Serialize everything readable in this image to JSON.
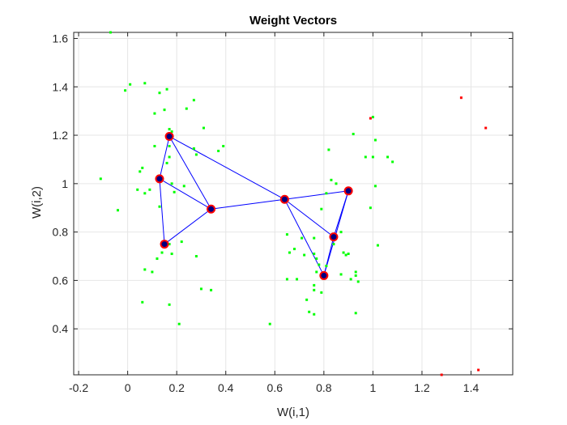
{
  "chart_data": {
    "type": "scatter",
    "title": "Weight Vectors",
    "xlabel": "W(i,1)",
    "ylabel": "W(i,2)",
    "xlim": [
      -0.22,
      1.57
    ],
    "ylim": [
      0.21,
      1.625
    ],
    "grid": true,
    "x_ticks": [
      -0.2,
      0,
      0.2,
      0.4,
      0.6,
      0.8,
      1,
      1.2,
      1.4
    ],
    "x_tick_labels": [
      "-0.2",
      "0",
      "0.2",
      "0.4",
      "0.6",
      "0.8",
      "1",
      "1.2",
      "1.4"
    ],
    "y_ticks": [
      0.4,
      0.6,
      0.8,
      1,
      1.2,
      1.4,
      1.6
    ],
    "y_tick_labels": [
      "0.4",
      "0.6",
      "0.8",
      "1",
      "1.2",
      "1.4",
      "1.6"
    ],
    "colors": {
      "green_points": "#00ff00",
      "red_points": "#ff0000",
      "network_lines": "#0000ff",
      "neuron_edge": "#ff0000",
      "neuron_face": "#000080",
      "grid": "#e6e6e6",
      "axis": "#262626"
    },
    "series": [
      {
        "marker": "dot",
        "points": [
          [
            -0.07,
            1.625
          ],
          [
            0.07,
            1.415
          ],
          [
            0.01,
            1.41
          ],
          [
            -0.01,
            1.385
          ],
          [
            0.16,
            1.39
          ],
          [
            0.13,
            1.375
          ],
          [
            0.27,
            1.345
          ],
          [
            0.24,
            1.31
          ],
          [
            0.11,
            1.29
          ],
          [
            0.15,
            1.305
          ],
          [
            0.31,
            1.23
          ],
          [
            0.17,
            1.225
          ],
          [
            0.18,
            1.215
          ],
          [
            0.16,
            1.19
          ],
          [
            0.11,
            1.155
          ],
          [
            0.27,
            1.145
          ],
          [
            0.39,
            1.155
          ],
          [
            0.37,
            1.135
          ],
          [
            0.17,
            1.155
          ],
          [
            0.17,
            1.11
          ],
          [
            0.16,
            1.085
          ],
          [
            0.06,
            1.065
          ],
          [
            0.05,
            1.05
          ],
          [
            0.28,
            1.12
          ],
          [
            0.18,
            1.0
          ],
          [
            0.23,
            0.99
          ],
          [
            0.04,
            0.975
          ],
          [
            0.09,
            0.975
          ],
          [
            0.07,
            0.96
          ],
          [
            0.13,
            0.905
          ],
          [
            -0.11,
            1.02
          ],
          [
            -0.04,
            0.89
          ],
          [
            0.19,
            0.965
          ],
          [
            0.17,
            0.75
          ],
          [
            0.22,
            0.76
          ],
          [
            0.14,
            0.715
          ],
          [
            0.18,
            0.71
          ],
          [
            0.12,
            0.69
          ],
          [
            0.28,
            0.7
          ],
          [
            0.07,
            0.645
          ],
          [
            0.1,
            0.635
          ],
          [
            0.3,
            0.565
          ],
          [
            0.34,
            0.56
          ],
          [
            0.06,
            0.51
          ],
          [
            0.17,
            0.5
          ],
          [
            0.21,
            0.42
          ],
          [
            0.58,
            0.42
          ],
          [
            0.65,
            0.79
          ],
          [
            0.71,
            0.775
          ],
          [
            0.68,
            0.73
          ],
          [
            0.66,
            0.715
          ],
          [
            0.76,
            0.775
          ],
          [
            0.76,
            0.71
          ],
          [
            0.72,
            0.705
          ],
          [
            0.77,
            0.69
          ],
          [
            0.78,
            0.665
          ],
          [
            0.77,
            0.635
          ],
          [
            0.8,
            0.61
          ],
          [
            0.81,
            0.66
          ],
          [
            0.76,
            0.58
          ],
          [
            0.76,
            0.56
          ],
          [
            0.79,
            0.55
          ],
          [
            0.73,
            0.52
          ],
          [
            0.74,
            0.47
          ],
          [
            0.76,
            0.46
          ],
          [
            0.65,
            0.605
          ],
          [
            0.69,
            0.605
          ],
          [
            0.88,
            0.715
          ],
          [
            0.89,
            0.705
          ],
          [
            0.9,
            0.71
          ],
          [
            0.87,
            0.625
          ],
          [
            0.93,
            0.635
          ],
          [
            0.93,
            0.62
          ],
          [
            0.91,
            0.605
          ],
          [
            0.94,
            0.595
          ],
          [
            0.93,
            0.465
          ],
          [
            0.79,
            0.895
          ],
          [
            0.81,
            0.96
          ],
          [
            0.83,
            1.015
          ],
          [
            0.85,
            1.0
          ],
          [
            0.82,
            1.14
          ],
          [
            0.84,
            0.75
          ],
          [
            0.87,
            0.8
          ],
          [
            0.92,
            1.205
          ],
          [
            1.0,
            1.275
          ],
          [
            1.01,
            1.18
          ],
          [
            0.97,
            1.11
          ],
          [
            1.06,
            1.11
          ],
          [
            1.08,
            1.09
          ],
          [
            1.0,
            1.11
          ],
          [
            0.99,
            0.9
          ],
          [
            1.01,
            0.99
          ],
          [
            1.02,
            0.745
          ]
        ]
      },
      {
        "marker": "dot",
        "points": [
          [
            0.99,
            1.27
          ],
          [
            1.36,
            1.355
          ],
          [
            1.46,
            1.23
          ],
          [
            1.28,
            0.21
          ],
          [
            1.43,
            0.23
          ]
        ]
      },
      {
        "marker": "circle",
        "points": [
          [
            0.17,
            1.195
          ],
          [
            0.13,
            1.02
          ],
          [
            0.34,
            0.895
          ],
          [
            0.15,
            0.75
          ],
          [
            0.64,
            0.935
          ],
          [
            0.9,
            0.97
          ],
          [
            0.84,
            0.78
          ],
          [
            0.8,
            0.62
          ]
        ],
        "edges": [
          [
            0,
            1
          ],
          [
            0,
            2
          ],
          [
            1,
            2
          ],
          [
            1,
            3
          ],
          [
            2,
            3
          ],
          [
            0,
            4
          ],
          [
            2,
            4
          ],
          [
            4,
            5
          ],
          [
            4,
            6
          ],
          [
            4,
            7
          ],
          [
            5,
            6
          ],
          [
            5,
            7
          ],
          [
            6,
            7
          ]
        ]
      }
    ]
  }
}
